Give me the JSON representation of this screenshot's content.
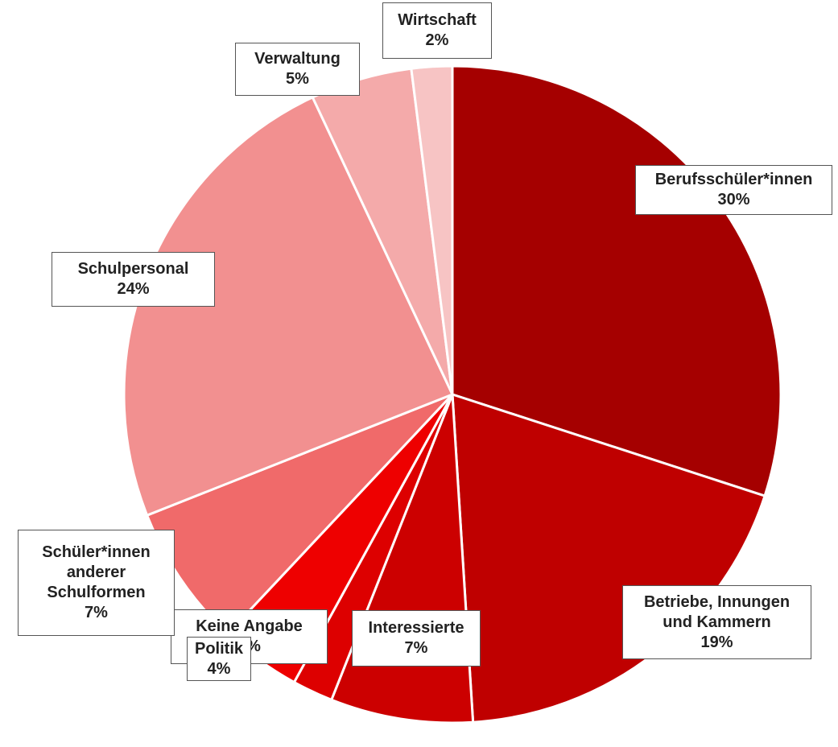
{
  "chart_data": {
    "type": "pie",
    "categories": [
      "Berufsschüler*innen",
      "Betriebe, Innungen und Kammern",
      "Interessierte",
      "Keine Angabe",
      "Politik",
      "Schüler*innen anderer Schulformen",
      "Schulpersonal",
      "Verwaltung",
      "Wirtschaft"
    ],
    "values": [
      30,
      19,
      7,
      2,
      4,
      7,
      24,
      5,
      2
    ],
    "value_labels": [
      "30%",
      "19%",
      "7%",
      "2%",
      "4%",
      "7%",
      "24%",
      "5%",
      "2%"
    ],
    "colors": [
      "#a50000",
      "#bf0000",
      "#cc0000",
      "#dd0000",
      "#ee0000",
      "#f06a6a",
      "#f29090",
      "#f4aaaa",
      "#f7c4c4"
    ]
  }
}
